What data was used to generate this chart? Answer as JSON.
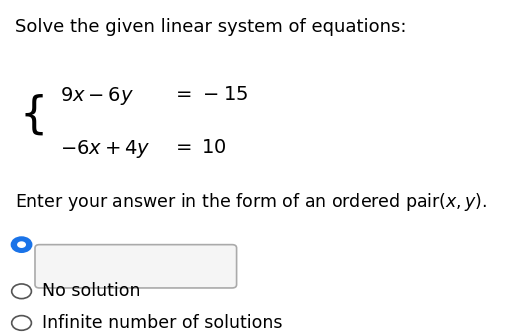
{
  "title": "Solve the given linear system of equations:",
  "eq1_left": "$9x - 6y$",
  "eq1_right": "$= -15$",
  "eq2_left": "$-6x + 4y$",
  "eq2_right": "$= 10$",
  "instruction": "Enter your answer in the form of an ordered pair$(x, y).$",
  "option1_label": "No solution",
  "option2_label": "Infinite number of solutions",
  "bg_color": "#ffffff",
  "text_color": "#000000",
  "radio_selected_fill": "#1a73e8",
  "radio_selected_border": "#1a73e8",
  "radio_unselected_fill": "#ffffff",
  "radio_unselected_border": "#555555",
  "input_box_color": "#f5f5f5",
  "input_border_color": "#aaaaaa",
  "title_fontsize": 13,
  "eq_fontsize": 14,
  "instruction_fontsize": 12.5,
  "option_fontsize": 12.5
}
